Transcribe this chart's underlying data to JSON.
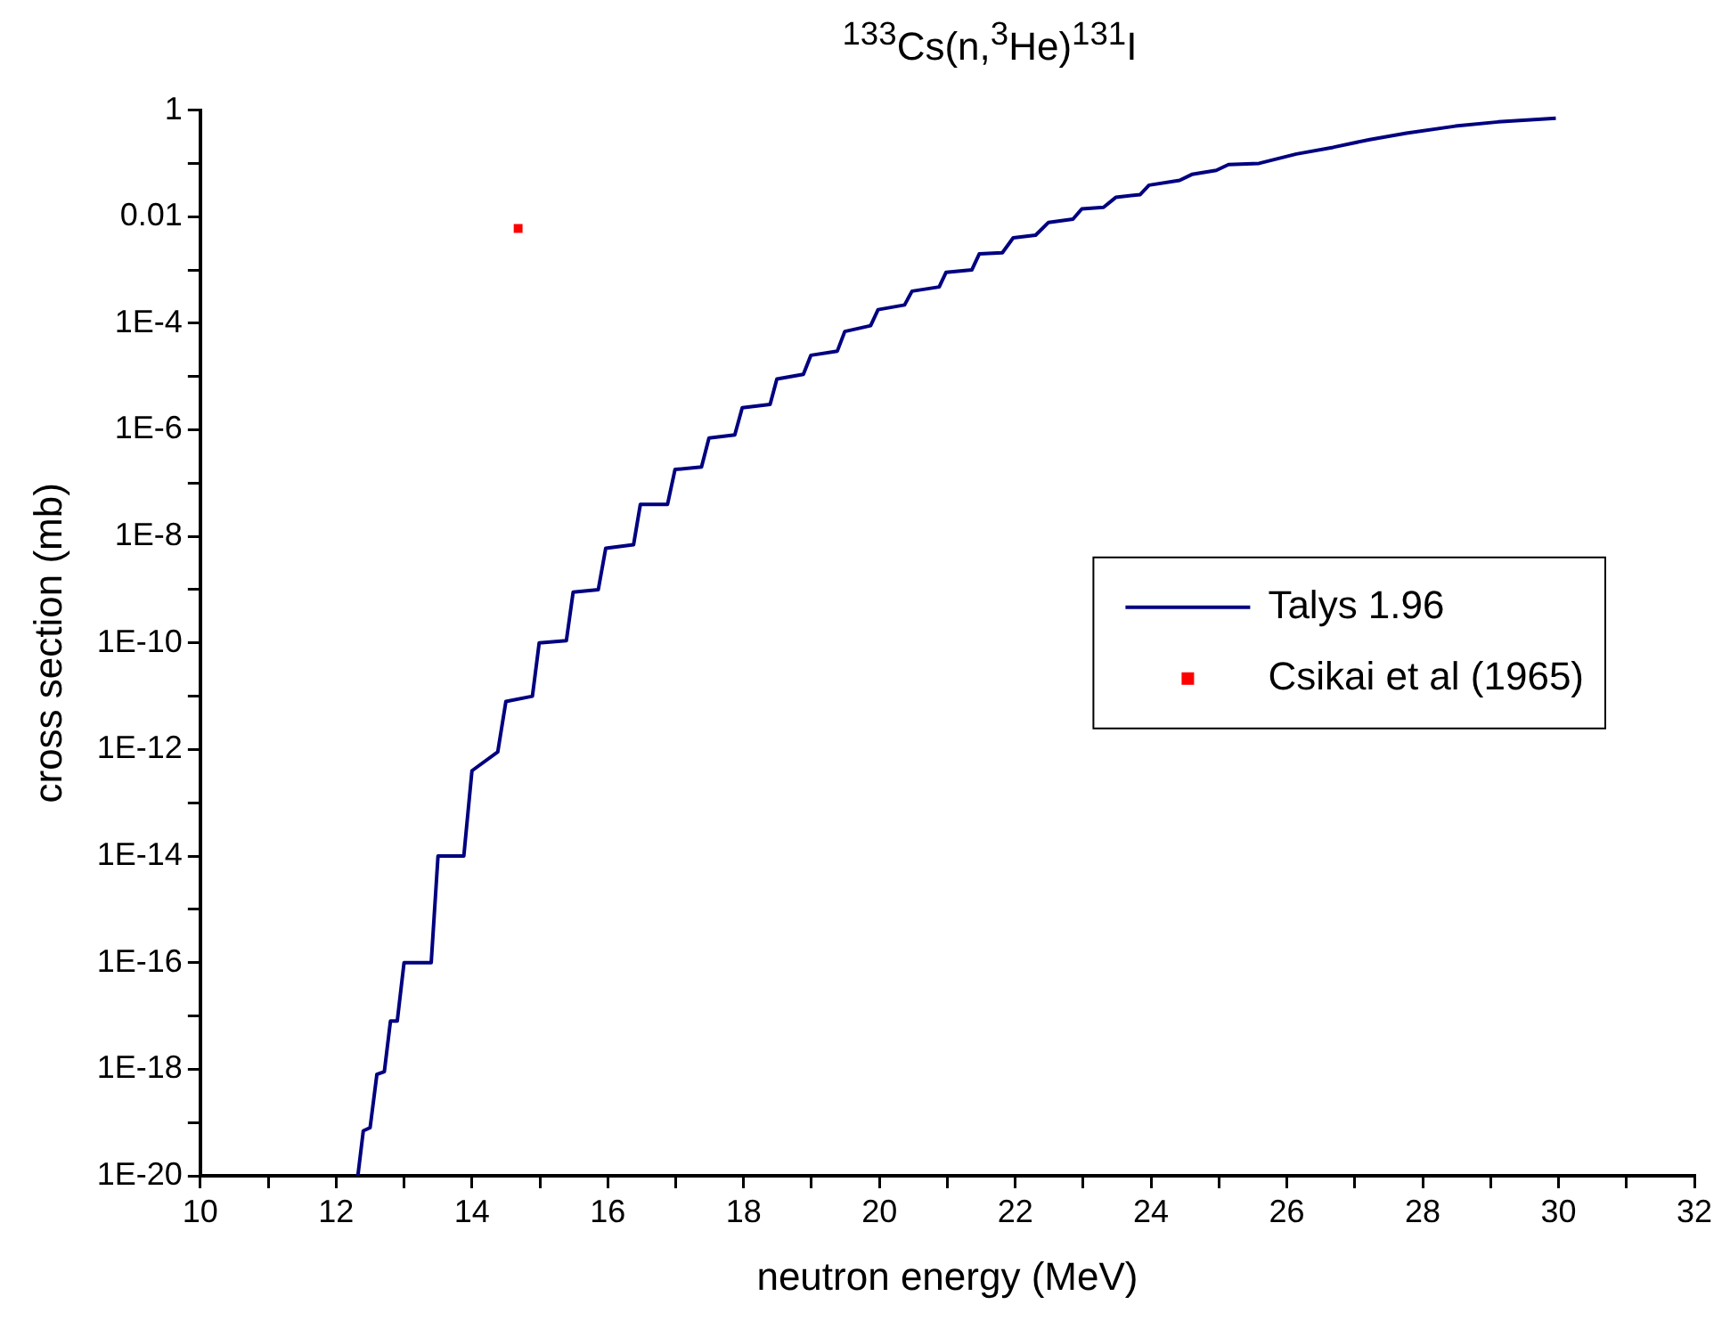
{
  "chart_data": {
    "type": "line",
    "title": "$^{133}$Cs(n,$^{3}$He)$^{131}$I",
    "xlabel": "neutron energy (MeV)",
    "ylabel": "cross section (mb)",
    "log": "y",
    "grid": false,
    "legend": "right",
    "xlim": [
      10,
      32
    ],
    "ylim": [
      1e-20,
      1
    ],
    "xticks": [
      10,
      {
        "value": 11,
        "label": null
      },
      12,
      {
        "value": 13,
        "label": null
      },
      14,
      {
        "value": 15,
        "label": null
      },
      16,
      {
        "value": 17,
        "label": null
      },
      18,
      {
        "value": 19,
        "label": null
      },
      20,
      {
        "value": 21,
        "label": null
      },
      22,
      {
        "value": 23,
        "label": null
      },
      24,
      {
        "value": 25,
        "label": null
      },
      26,
      {
        "value": 27,
        "label": null
      },
      28,
      {
        "value": 29,
        "label": null
      },
      30,
      {
        "value": 31,
        "label": null
      },
      32
    ],
    "yticks": [
      {
        "value": 1e-20,
        "label": "1E-20"
      },
      {
        "value": 1e-19,
        "label": null
      },
      {
        "value": 1e-18,
        "label": "1E-18"
      },
      {
        "value": 1e-17,
        "label": null
      },
      {
        "value": 1e-16,
        "label": "1E-16"
      },
      {
        "value": 1e-15,
        "label": null
      },
      {
        "value": 1e-14,
        "label": "1E-14"
      },
      {
        "value": 1e-13,
        "label": null
      },
      {
        "value": 1e-12,
        "label": "1E-12"
      },
      {
        "value": 1e-11,
        "label": null
      },
      {
        "value": 1e-10,
        "label": "1E-10"
      },
      {
        "value": 1e-09,
        "label": null
      },
      {
        "value": 1e-08,
        "label": "1E-8"
      },
      {
        "value": 1e-07,
        "label": null
      },
      {
        "value": 1e-06,
        "label": "1E-6"
      },
      {
        "value": 1e-05,
        "label": null
      },
      {
        "value": 0.0001,
        "label": "1E-4"
      },
      {
        "value": 0.001,
        "label": null
      },
      0.01,
      {
        "value": 0.1,
        "label": null
      },
      1
    ],
    "series": [
      {
        "name": "Talys 1.96",
        "color": "#000080",
        "marker": "none",
        "line_style": "solid",
        "x": [
          12.32,
          12.4,
          12.5,
          12.6,
          12.71,
          12.8,
          12.9,
          13.0,
          13.4,
          13.5,
          13.88,
          14.0,
          14.38,
          14.5,
          14.89,
          14.99,
          15.39,
          15.49,
          15.86,
          15.97,
          16.38,
          16.48,
          16.88,
          16.99,
          17.38,
          17.49,
          17.87,
          17.98,
          18.39,
          18.49,
          18.88,
          18.99,
          19.38,
          19.49,
          19.87,
          19.98,
          20.37,
          20.48,
          20.88,
          20.98,
          21.36,
          21.47,
          21.81,
          21.97,
          22.3,
          22.49,
          22.85,
          22.98,
          23.3,
          23.48,
          23.84,
          23.97,
          24.42,
          24.6,
          24.96,
          25.14,
          25.59,
          26.14,
          26.68,
          27.22,
          27.76,
          28.48,
          29.11,
          29.96
        ],
        "values": [
          1e-20,
          7e-20,
          8e-20,
          8e-19,
          9e-19,
          8e-18,
          8e-18,
          1e-16,
          1e-16,
          1e-14,
          1e-14,
          4e-13,
          9e-13,
          8e-12,
          1e-11,
          1e-10,
          1.1e-10,
          9e-10,
          1e-09,
          6e-09,
          7e-09,
          4e-08,
          4e-08,
          1.8e-07,
          2e-07,
          7e-07,
          8e-07,
          2.6e-06,
          3e-06,
          9e-06,
          1.1e-05,
          2.5e-05,
          3e-05,
          7e-05,
          9e-05,
          0.00018,
          0.00022,
          0.0004,
          0.00048,
          0.0009,
          0.001,
          0.002,
          0.0021,
          0.004,
          0.0045,
          0.0078,
          0.009,
          0.014,
          0.015,
          0.023,
          0.026,
          0.039,
          0.048,
          0.062,
          0.074,
          0.095,
          0.1,
          0.15,
          0.2,
          0.28,
          0.37,
          0.5,
          0.6,
          0.7
        ]
      },
      {
        "name": "Csikai et al (1965)",
        "type": "scatter",
        "color": "#ff0000",
        "marker": "square",
        "x": [
          14.68
        ],
        "values": [
          0.006
        ]
      }
    ]
  }
}
